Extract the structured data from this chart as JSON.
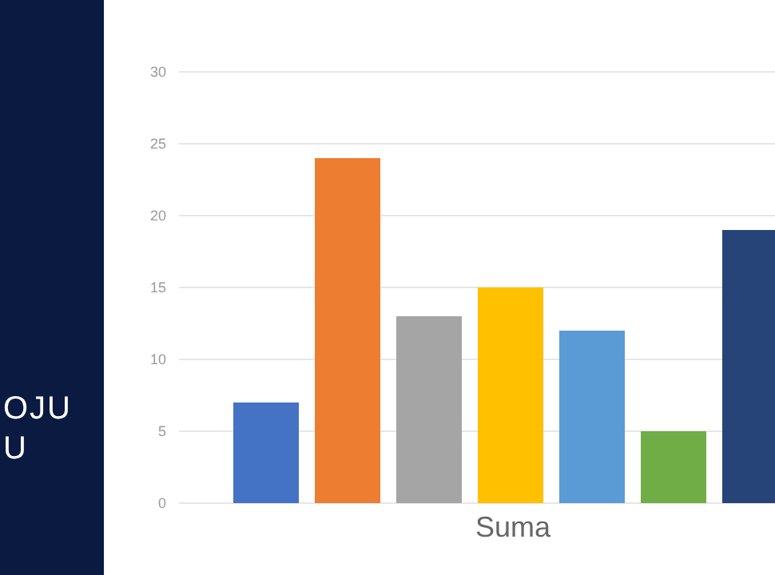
{
  "chart_data": {
    "type": "bar",
    "categories": [
      "Suma"
    ],
    "series": [
      {
        "color": "#4472c4",
        "values": [
          7
        ]
      },
      {
        "color": "#ed7d31",
        "values": [
          24
        ]
      },
      {
        "color": "#a5a5a5",
        "values": [
          13
        ]
      },
      {
        "color": "#ffc000",
        "values": [
          15
        ]
      },
      {
        "color": "#5b9bd5",
        "values": [
          12
        ]
      },
      {
        "color": "#70ad47",
        "values": [
          5
        ]
      },
      {
        "color": "#264478",
        "values": [
          19
        ]
      }
    ],
    "ylim": [
      0,
      30
    ],
    "yticks": [
      0,
      5,
      10,
      15,
      20,
      25,
      30
    ],
    "grid": "y",
    "legend": false,
    "annotations": [
      "OJU",
      "U"
    ]
  }
}
